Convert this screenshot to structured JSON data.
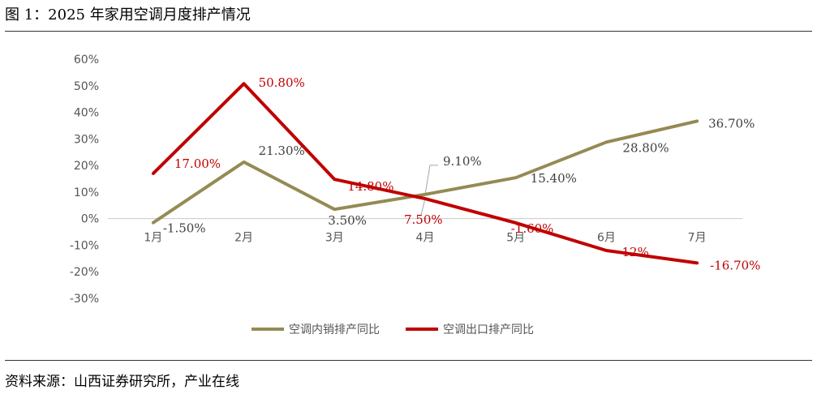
{
  "title": "图 1：2025 年家用空调月度排产情况",
  "source": "资料来源：山西证券研究所，产业在线",
  "chart_data": {
    "type": "line",
    "categories": [
      "1月",
      "2月",
      "3月",
      "4月",
      "5月",
      "6月",
      "7月"
    ],
    "ylim": [
      -30,
      60
    ],
    "yticks": [
      60,
      50,
      40,
      30,
      20,
      10,
      0,
      -10,
      -20,
      -30
    ],
    "ytick_labels": [
      "60%",
      "50%",
      "40%",
      "30%",
      "20%",
      "10%",
      "0%",
      "-10%",
      "-20%",
      "-30%"
    ],
    "legend_position": "bottom",
    "grid": false,
    "series": [
      {
        "name": "空调内销排产同比",
        "color": "#948A54",
        "values": [
          -1.5,
          21.3,
          3.5,
          9.1,
          15.4,
          28.8,
          36.7
        ],
        "labels": [
          "-1.50%",
          "21.30%",
          "3.50%",
          "9.10%",
          "15.40%",
          "28.80%",
          "36.70%"
        ]
      },
      {
        "name": "空调出口排产同比",
        "color": "#C00000",
        "values": [
          17.0,
          50.8,
          14.8,
          7.5,
          -1.6,
          -12,
          -16.7
        ],
        "labels": [
          "17.00%",
          "50.80%",
          "14.80%",
          "7.50%",
          "-1.60%",
          "-12%",
          "-16.70%"
        ]
      }
    ]
  }
}
